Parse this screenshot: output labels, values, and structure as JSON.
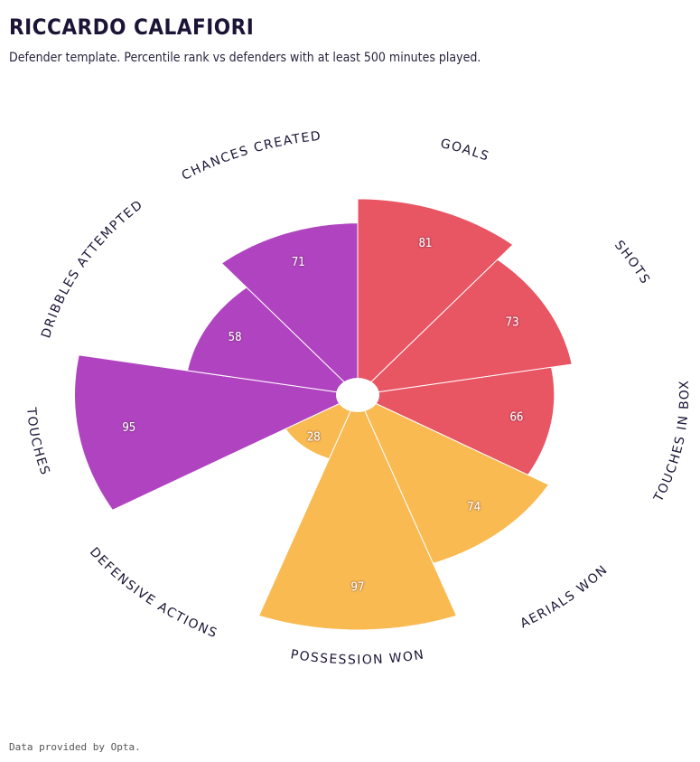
{
  "header": {
    "title": "RICCARDO CALAFIORI",
    "subtitle": "Defender template. Percentile rank vs defenders with at least 500 minutes played."
  },
  "footer": {
    "credit": "Data provided by Opta."
  },
  "chart_data": {
    "type": "pie",
    "variant": "radial-bar",
    "title": "RICCARDO CALAFIORI",
    "subtitle": "Defender template. Percentile rank vs defenders with at least 500 minutes played.",
    "scale": [
      0,
      100
    ],
    "categories": [
      "GOALS",
      "SHOTS",
      "TOUCHES IN BOX",
      "AERIALS WON",
      "POSSESSION WON",
      "DEFENSIVE ACTIONS",
      "TOUCHES",
      "DRIBBLES ATTEMPTED",
      "CHANCES CREATED"
    ],
    "values": [
      81,
      73,
      66,
      74,
      97,
      28,
      95,
      58,
      71
    ],
    "colors": [
      "#e85563",
      "#e85563",
      "#e85563",
      "#f9ba52",
      "#f9ba52",
      "#f9ba52",
      "#b044c0",
      "#b044c0",
      "#b044c0"
    ]
  }
}
